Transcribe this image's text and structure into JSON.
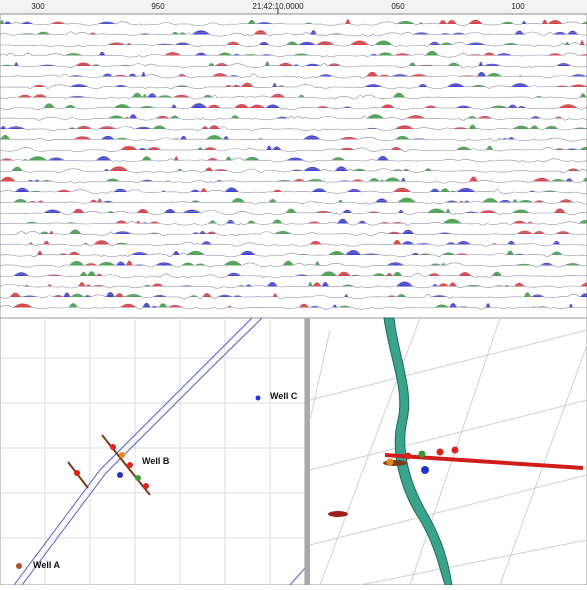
{
  "seismic_panel": {
    "axis_labels": [
      "300",
      "950",
      "21:42:10.0000",
      "050",
      "100"
    ]
  },
  "map_view": {
    "wells": [
      {
        "label": "Well A"
      },
      {
        "label": "Well B"
      },
      {
        "label": "Well C"
      }
    ]
  }
}
